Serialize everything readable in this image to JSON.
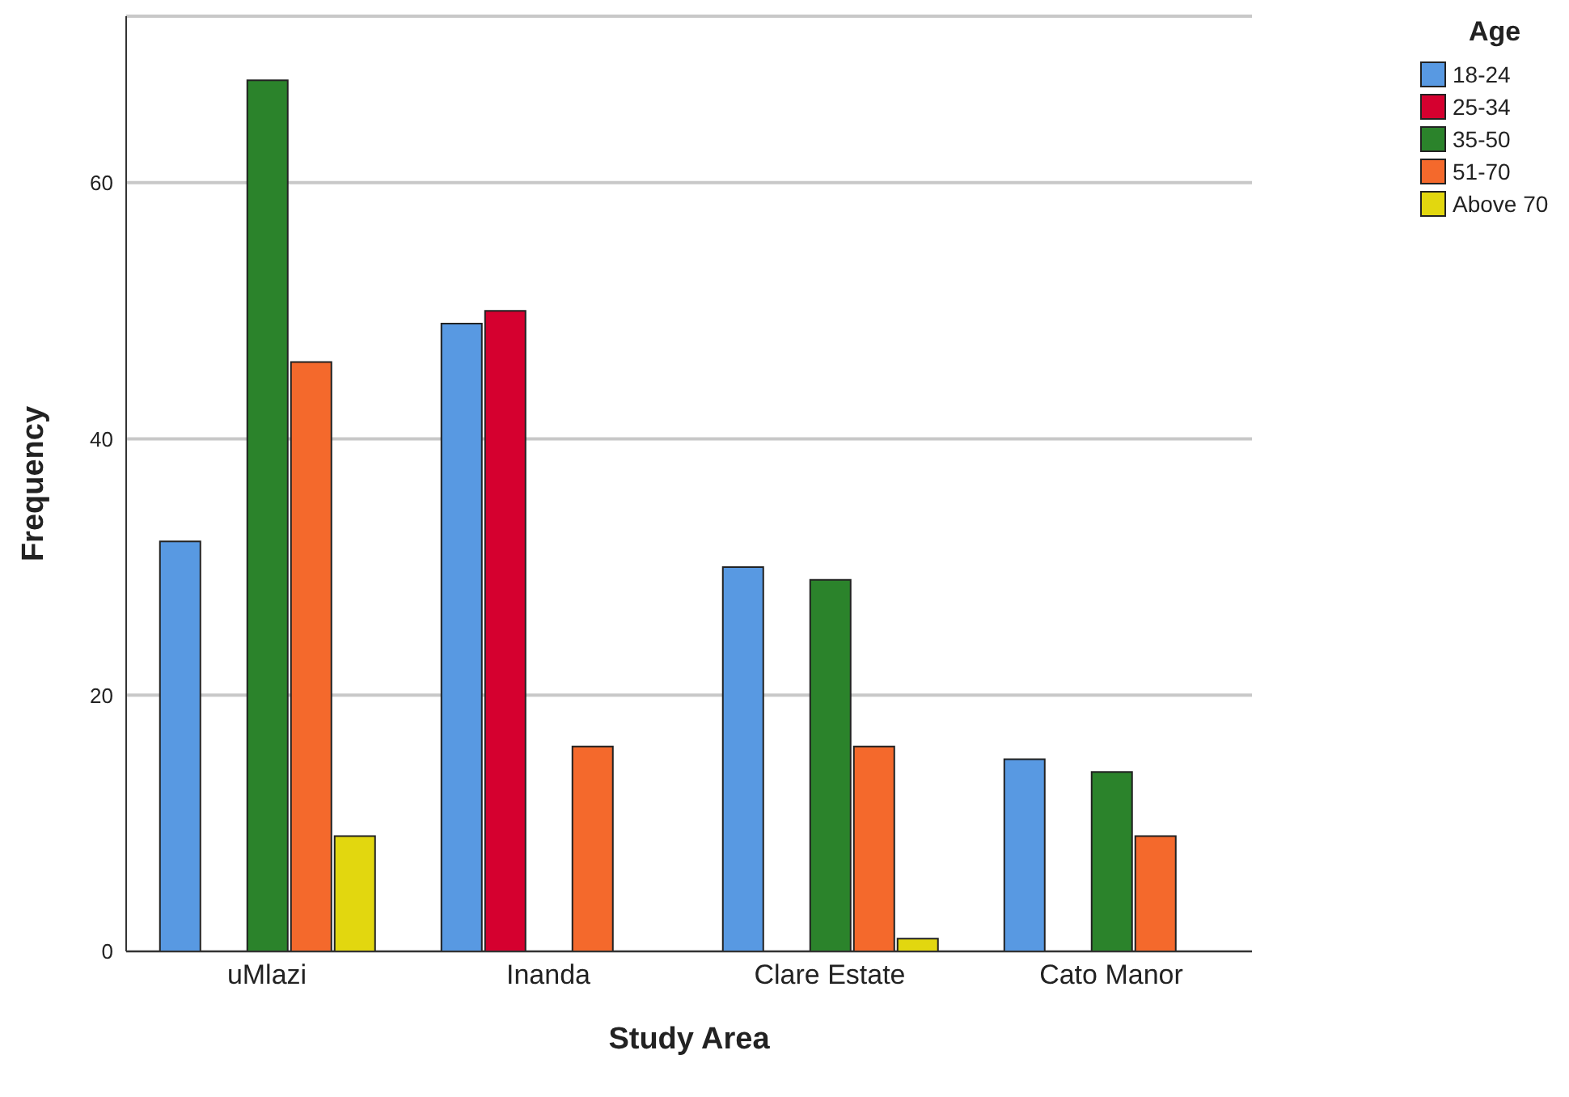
{
  "chart_data": {
    "type": "bar",
    "xlabel": "Study Area",
    "ylabel": "Frequency",
    "legend_title": "Age",
    "categories": [
      "uMlazi",
      "Inanda",
      "Clare Estate",
      "Cato Manor"
    ],
    "series": [
      {
        "name": "18-24",
        "color": "#5899e2",
        "values": [
          32,
          49,
          30,
          15
        ]
      },
      {
        "name": "25-34",
        "color": "#d5002f",
        "values": [
          null,
          50,
          null,
          null
        ]
      },
      {
        "name": "35-50",
        "color": "#2b832b",
        "values": [
          68,
          null,
          29,
          14
        ]
      },
      {
        "name": "51-70",
        "color": "#f4692c",
        "values": [
          46,
          16,
          16,
          9
        ]
      },
      {
        "name": "Above 70",
        "color": "#e2d70f",
        "values": [
          9,
          null,
          1,
          null
        ]
      }
    ],
    "ylim": [
      0,
      73
    ],
    "yticks": [
      0,
      20,
      40,
      60
    ],
    "grid": "y",
    "legend": "top right"
  }
}
